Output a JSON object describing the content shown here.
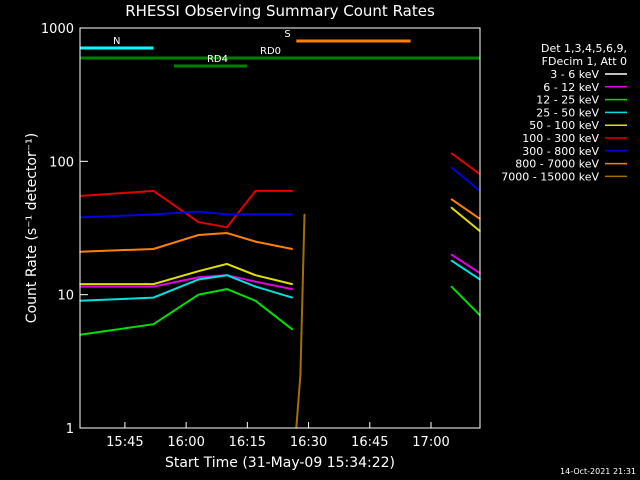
{
  "chart_data": {
    "type": "line",
    "title": "RHESSI Observing Summary Count Rates",
    "xlabel": "Start Time (31-May-09 15:34:22)",
    "ylabel": "Count Rate (s⁻¹ detector⁻¹)",
    "x_unit": "minutes",
    "xlim": [
      "15:34",
      "17:12"
    ],
    "ylim": [
      1,
      1000
    ],
    "yscale": "log",
    "x_ticks": [
      "15:45",
      "16:00",
      "16:15",
      "16:30",
      "16:45",
      "17:00"
    ],
    "y_ticks": [
      "1",
      "10",
      "100",
      "1000"
    ],
    "legend_header": [
      "Det 1,3,4,5,6,9,",
      "FDecim 1, Att 0"
    ],
    "legend_position": "right",
    "timestamp": "14-Oct-2021 21:31",
    "series": [
      {
        "name": "3 - 6 keV",
        "color": "#000000",
        "x": [
          "15:34",
          "15:52",
          "16:03",
          "16:10",
          "16:17",
          "16:26",
          "17:05",
          "17:12"
        ],
        "values": [
          6.5,
          6.0,
          9.0,
          10.5,
          8.0,
          6.0,
          12.0,
          8.5
        ]
      },
      {
        "name": "6 - 12 keV",
        "color": "#e000e0",
        "x": [
          "15:34",
          "15:52",
          "16:03",
          "16:10",
          "16:17",
          "16:26",
          "17:05",
          "17:12"
        ],
        "values": [
          11.5,
          11.5,
          13.5,
          14.0,
          12.5,
          11.0,
          20.0,
          14.5
        ]
      },
      {
        "name": "12 - 25 keV",
        "color": "#00e000",
        "x": [
          "15:34",
          "15:52",
          "16:03",
          "16:10",
          "16:17",
          "16:26",
          "17:05",
          "17:12"
        ],
        "values": [
          5.0,
          6.0,
          10.0,
          11.0,
          9.0,
          5.5,
          11.5,
          7.0
        ]
      },
      {
        "name": "25 - 50 keV",
        "color": "#00e0e0",
        "x": [
          "15:34",
          "15:52",
          "16:03",
          "16:10",
          "16:17",
          "16:26",
          "17:05",
          "17:12"
        ],
        "values": [
          9.0,
          9.5,
          13.0,
          14.0,
          11.5,
          9.5,
          18.0,
          13.0
        ]
      },
      {
        "name": "50 - 100 keV",
        "color": "#e0e000",
        "x": [
          "15:34",
          "15:52",
          "16:03",
          "16:10",
          "16:17",
          "16:26",
          "17:05",
          "17:12"
        ],
        "values": [
          12.0,
          12.0,
          15.0,
          17.0,
          14.0,
          12.0,
          45.0,
          30.0
        ]
      },
      {
        "name": "100 - 300 keV",
        "color": "#e00000",
        "x": [
          "15:34",
          "15:52",
          "16:03",
          "16:10",
          "16:17",
          "16:26",
          "17:05",
          "17:12"
        ],
        "values": [
          55,
          60,
          35,
          32,
          60,
          60,
          115,
          80
        ]
      },
      {
        "name": "300 - 800 keV",
        "color": "#0000e0",
        "x": [
          "15:34",
          "15:52",
          "16:03",
          "16:10",
          "16:17",
          "16:26",
          "17:05",
          "17:12"
        ],
        "values": [
          38,
          40,
          42,
          40,
          40,
          40,
          90,
          60
        ]
      },
      {
        "name": "800 - 7000 keV",
        "color": "#ff8000",
        "x": [
          "15:34",
          "15:52",
          "16:03",
          "16:10",
          "16:17",
          "16:26",
          "17:05",
          "17:12"
        ],
        "values": [
          21,
          22,
          28,
          29,
          25,
          22,
          52,
          37
        ]
      },
      {
        "name": "7000 - 15000 keV",
        "color": "#a07000",
        "x": [
          "16:27",
          "16:28",
          "16:29"
        ],
        "values": [
          1.0,
          2.5,
          40
        ]
      }
    ],
    "markers": [
      {
        "label": "N",
        "color": "#00ffff",
        "from": "15:34",
        "to": "15:52"
      },
      {
        "label": "RD0",
        "color": "#008000",
        "from": "15:34",
        "to": "17:12"
      },
      {
        "label": "RD4",
        "color": "#008000",
        "from": "15:57",
        "to": "16:15"
      },
      {
        "label": "S",
        "color": "#ff8000",
        "from": "16:27",
        "to": "16:55"
      }
    ]
  }
}
